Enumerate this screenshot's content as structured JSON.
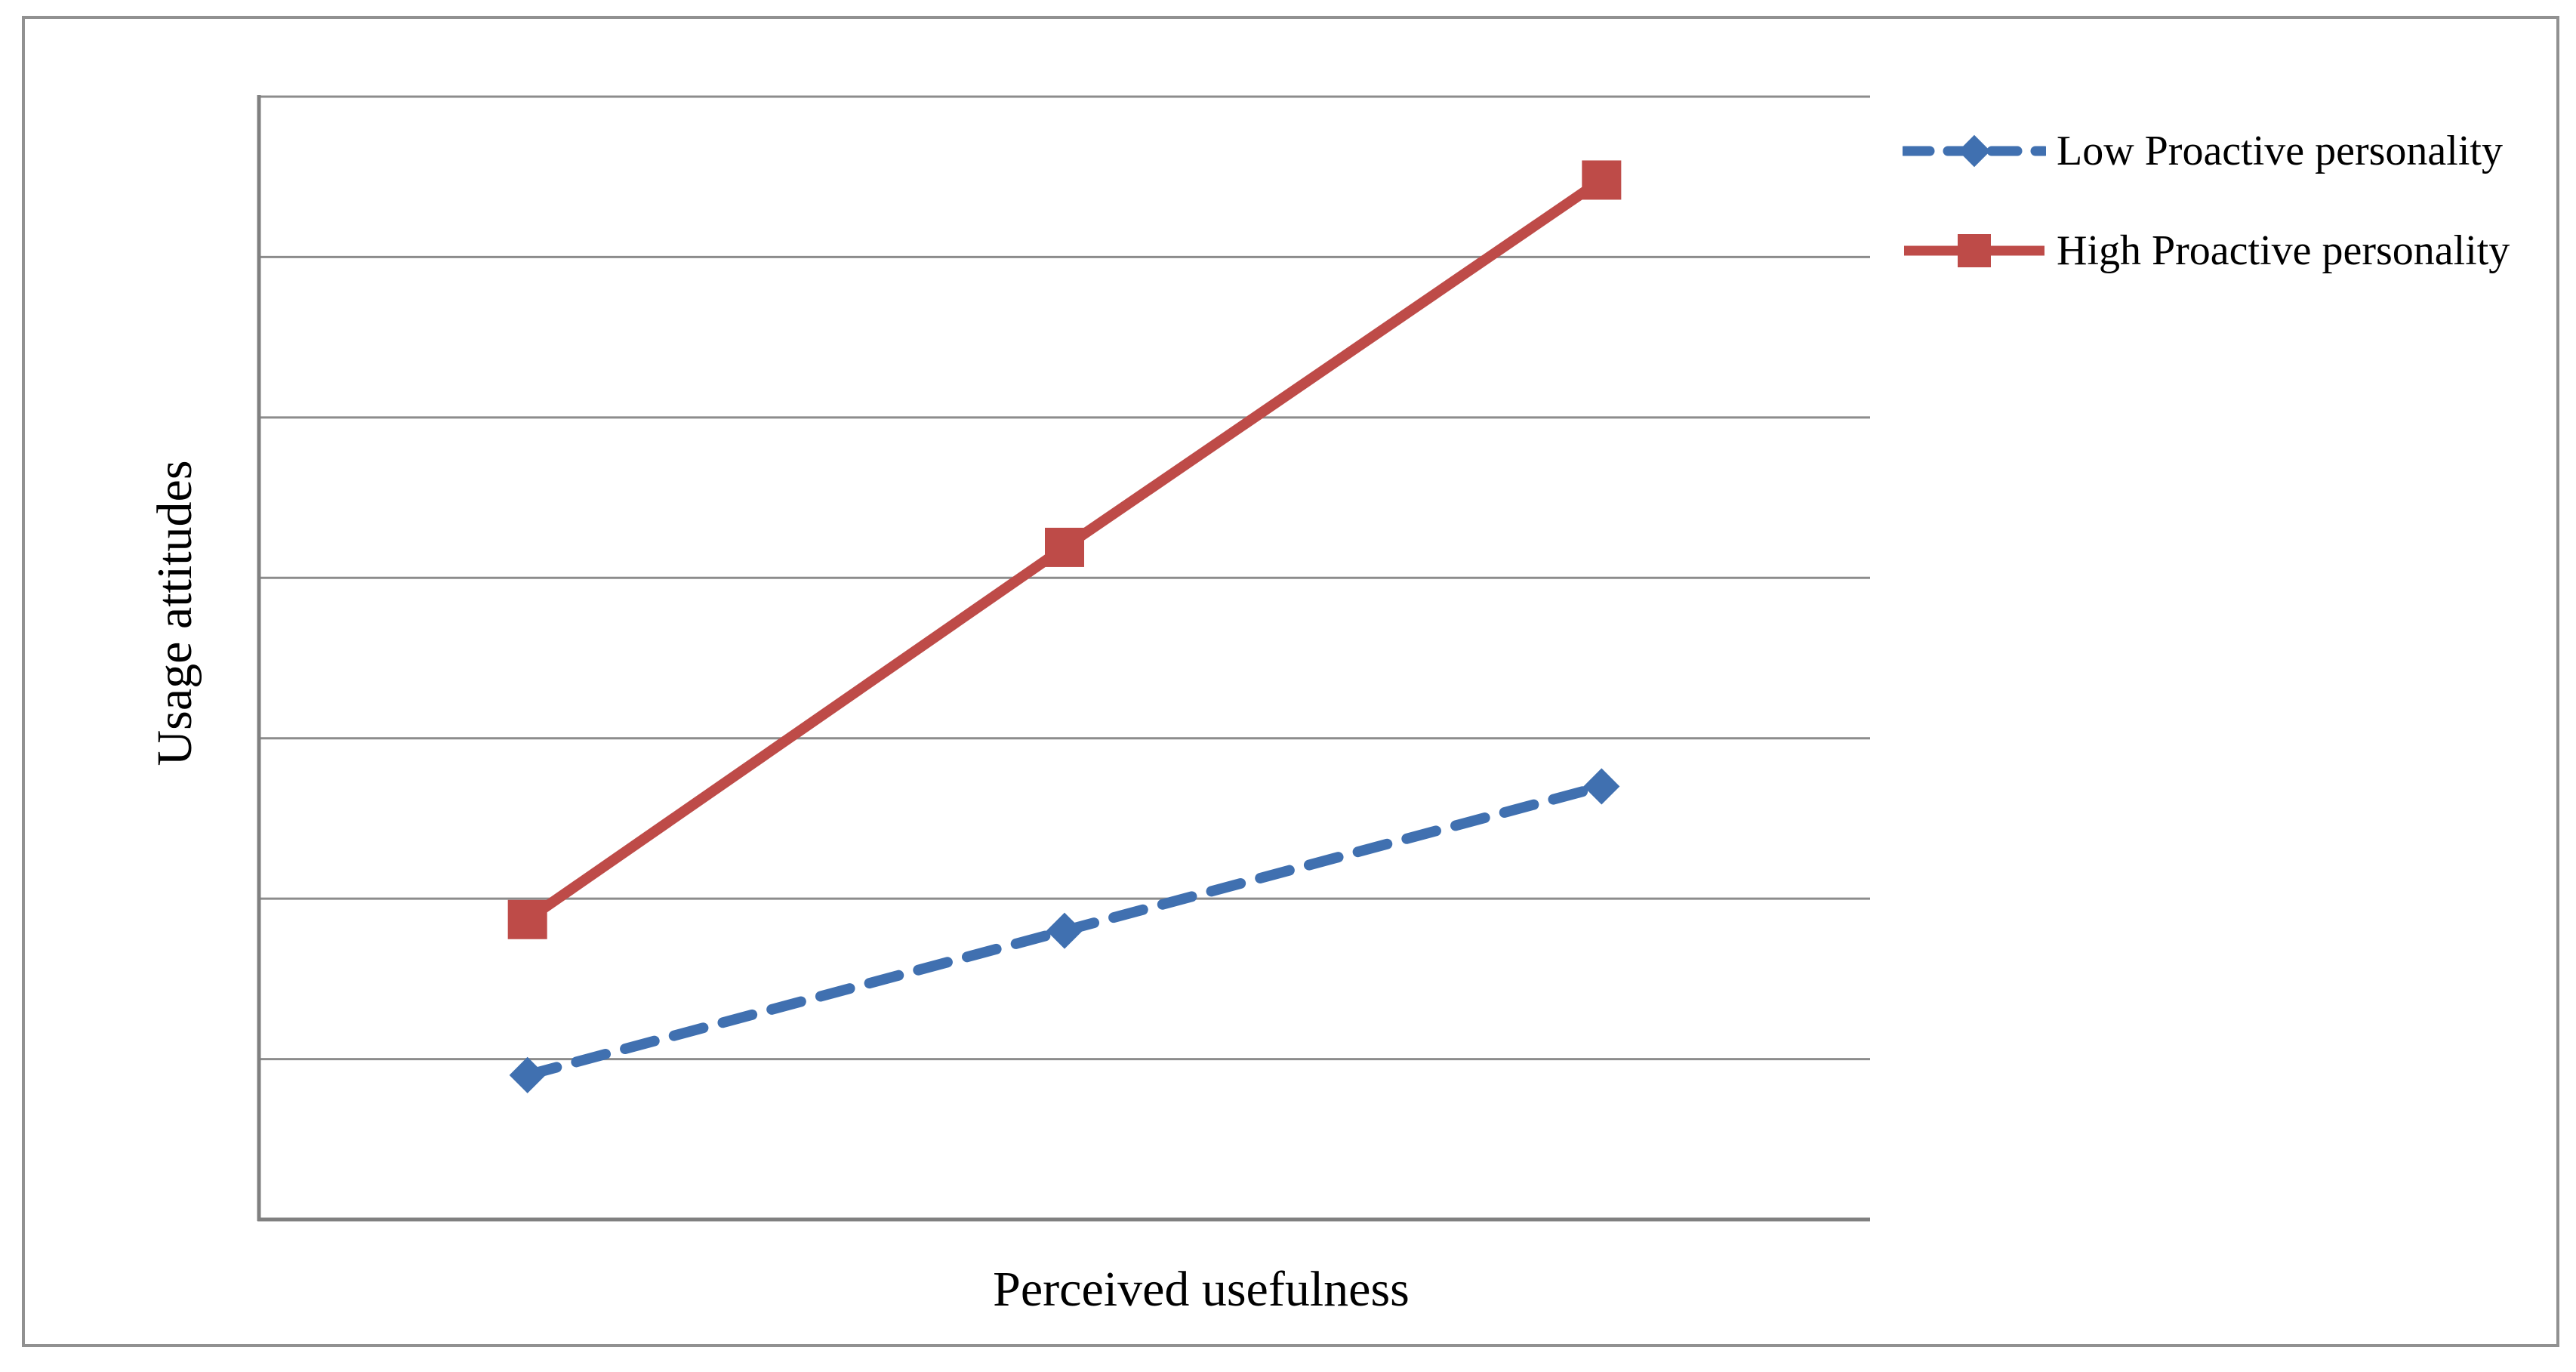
{
  "figure": {
    "background": "#ffffff",
    "border_color": "#919191"
  },
  "colors": {
    "gridline": "#8c8c8c",
    "axis": "#808080",
    "text": "#000000",
    "series_low": "#4070b0",
    "series_high": "#be4b48"
  },
  "chart_data": {
    "type": "line",
    "title": "",
    "xlabel": "Perceived usefulness",
    "ylabel": "Usage attitudes",
    "x": [
      1,
      2,
      3
    ],
    "x_tick_labels_visible": false,
    "y_tick_labels_visible": false,
    "ylim": [
      0,
      7
    ],
    "gridline_step": 1,
    "grid": "horizontal",
    "legend_position": "top-right",
    "series": [
      {
        "name": "Low Proactive personality",
        "values": [
          0.9,
          1.8,
          2.7
        ],
        "color": "#4070b0",
        "line_style": "dashed",
        "marker": "diamond"
      },
      {
        "name": "High Proactive personality",
        "values": [
          1.87,
          4.19,
          6.48
        ],
        "color": "#be4b48",
        "line_style": "solid",
        "marker": "square"
      }
    ]
  }
}
